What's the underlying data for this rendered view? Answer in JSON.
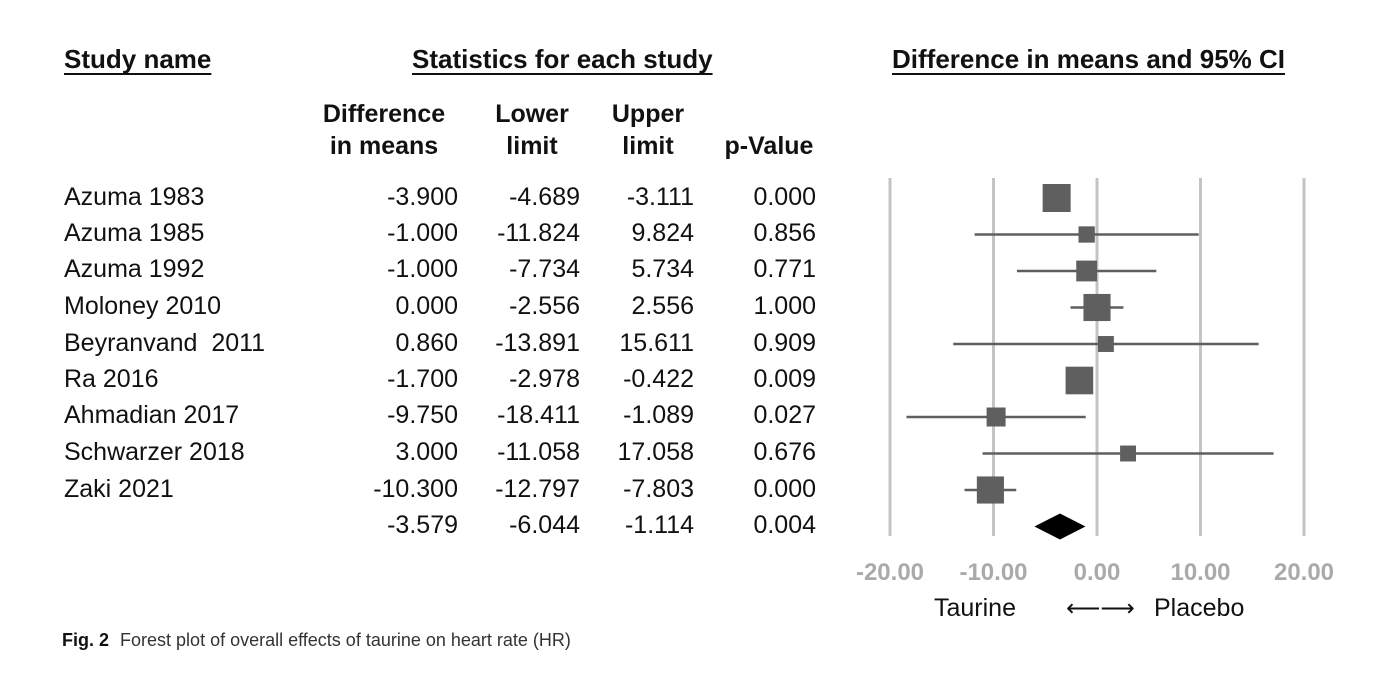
{
  "headers": {
    "study": "Study name",
    "stats": "Statistics for each study",
    "plot": "Difference in means and 95% CI"
  },
  "columns": {
    "diff_l1": "Difference",
    "diff_l2": "in means",
    "low_l1": "Lower",
    "low_l2": "limit",
    "up_l1": "Upper",
    "up_l2": "limit",
    "p": "p-Value"
  },
  "rows": [
    {
      "name": "Azuma 1983",
      "diff": "-3.900",
      "lower": "-4.689",
      "upper": "-3.111",
      "p": "0.000"
    },
    {
      "name": "Azuma 1985",
      "diff": "-1.000",
      "lower": "-11.824",
      "upper": "9.824",
      "p": "0.856"
    },
    {
      "name": "Azuma 1992",
      "diff": "-1.000",
      "lower": "-7.734",
      "upper": "5.734",
      "p": "0.771"
    },
    {
      "name": "Moloney 2010",
      "diff": "0.000",
      "lower": "-2.556",
      "upper": "2.556",
      "p": "1.000"
    },
    {
      "name": "Beyranvand  2011",
      "diff": "0.860",
      "lower": "-13.891",
      "upper": "15.611",
      "p": "0.909"
    },
    {
      "name": "Ra 2016",
      "diff": "-1.700",
      "lower": "-2.978",
      "upper": "-0.422",
      "p": "0.009"
    },
    {
      "name": "Ahmadian 2017",
      "diff": "-9.750",
      "lower": "-18.411",
      "upper": "-1.089",
      "p": "0.027"
    },
    {
      "name": "Schwarzer 2018",
      "diff": "3.000",
      "lower": "-11.058",
      "upper": "17.058",
      "p": "0.676"
    },
    {
      "name": "Zaki 2021",
      "diff": "-10.300",
      "lower": "-12.797",
      "upper": "-7.803",
      "p": "0.000"
    },
    {
      "name": "",
      "diff": "-3.579",
      "lower": "-6.044",
      "upper": "-1.114",
      "p": "0.004"
    }
  ],
  "direction": {
    "left": "Taurine",
    "arrow": "⟵⟶",
    "right": "Placebo"
  },
  "caption": {
    "label": "Fig. 2",
    "text": "Forest plot of overall effects of taurine on heart rate (HR)"
  },
  "chart_data": {
    "type": "forest",
    "xlim": [
      -20,
      20
    ],
    "ticks": [
      -20,
      -10,
      0,
      10,
      20
    ],
    "tick_labels": [
      "-20.00",
      "-10.00",
      "0.00",
      "10.00",
      "20.00"
    ],
    "grid": true,
    "colors": {
      "marker": "#5f5f5f",
      "summary": "#000000",
      "grid": "#c4c4c4",
      "ticks": "#aaaaaa"
    },
    "studies": [
      {
        "name": "Azuma 1983",
        "estimate": -3.9,
        "lower": -4.689,
        "upper": -3.111,
        "weight": 1.0
      },
      {
        "name": "Azuma 1985",
        "estimate": -1.0,
        "lower": -11.824,
        "upper": 9.824,
        "weight": 0.35
      },
      {
        "name": "Azuma 1992",
        "estimate": -1.0,
        "lower": -7.734,
        "upper": 5.734,
        "weight": 0.6
      },
      {
        "name": "Moloney 2010",
        "estimate": 0.0,
        "lower": -2.556,
        "upper": 2.556,
        "weight": 0.95
      },
      {
        "name": "Beyranvand  2011",
        "estimate": 0.86,
        "lower": -13.891,
        "upper": 15.611,
        "weight": 0.33
      },
      {
        "name": "Ra 2016",
        "estimate": -1.7,
        "lower": -2.978,
        "upper": -0.422,
        "weight": 0.98
      },
      {
        "name": "Ahmadian 2017",
        "estimate": -9.75,
        "lower": -18.411,
        "upper": -1.089,
        "weight": 0.5
      },
      {
        "name": "Schwarzer 2018",
        "estimate": 3.0,
        "lower": -11.058,
        "upper": 17.058,
        "weight": 0.33
      },
      {
        "name": "Zaki 2021",
        "estimate": -10.3,
        "lower": -12.797,
        "upper": -7.803,
        "weight": 0.95
      }
    ],
    "summary": {
      "estimate": -3.579,
      "lower": -6.044,
      "upper": -1.114
    }
  }
}
